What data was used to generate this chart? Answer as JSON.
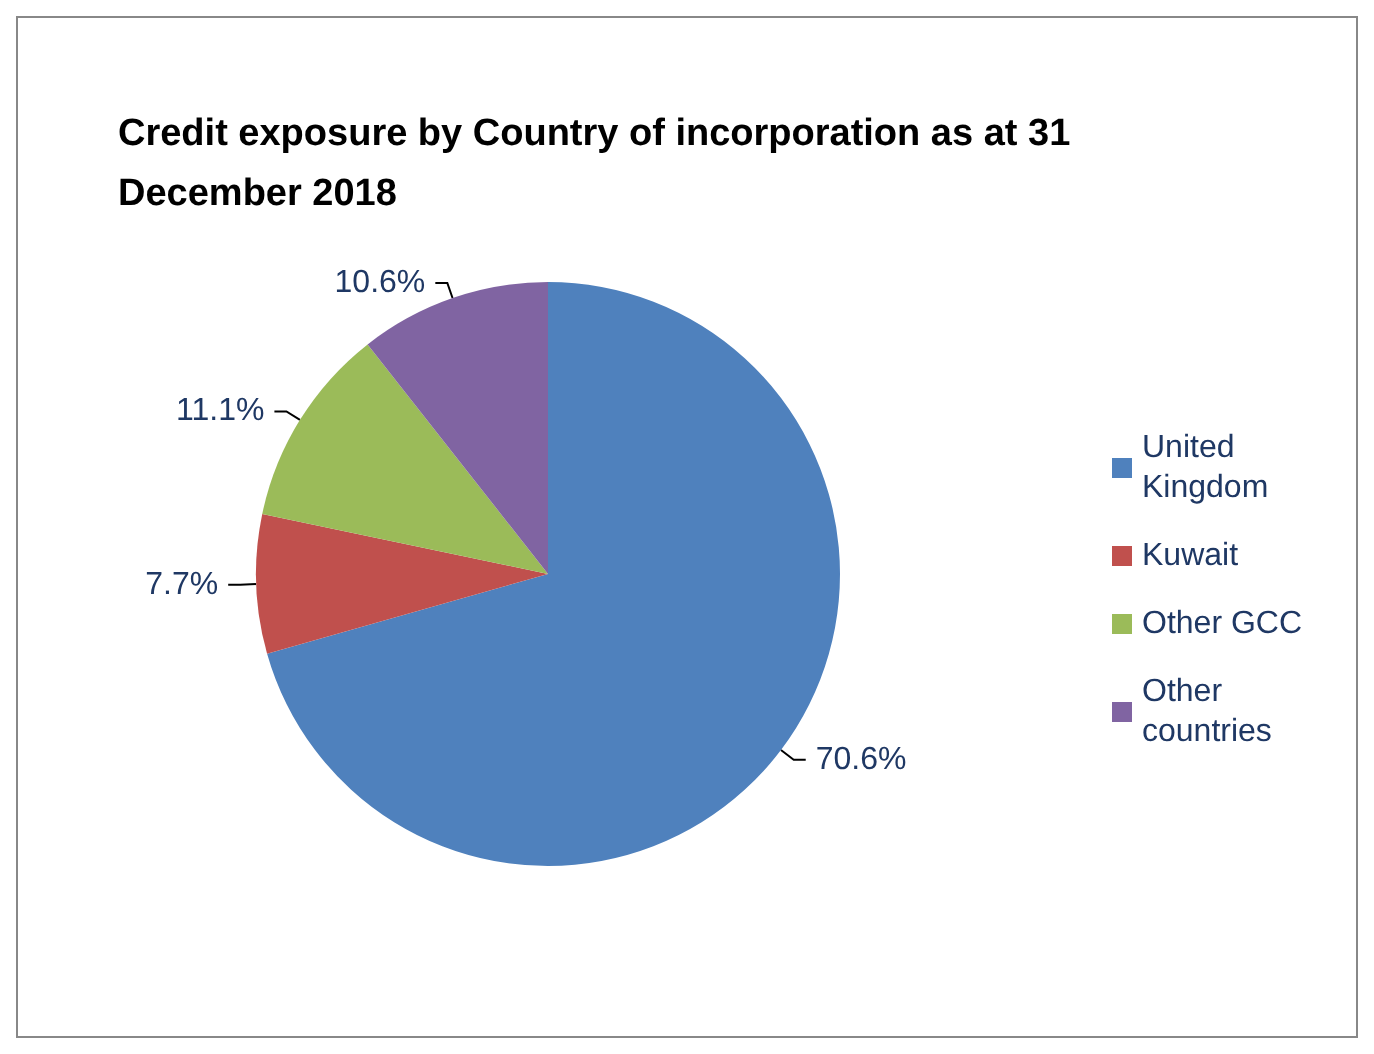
{
  "chart_data": {
    "type": "pie",
    "title": "Credit exposure by Country of incorporation as at 31 December 2018",
    "categories": [
      "United Kingdom",
      "Kuwait",
      "Other GCC",
      "Other countries"
    ],
    "values": [
      70.6,
      7.7,
      11.1,
      10.6
    ],
    "colors": [
      "#4f81bd",
      "#c0504d",
      "#9bbb59",
      "#8064a2"
    ],
    "value_labels": [
      "70.6%",
      "7.7%",
      "11.1%",
      "10.6%"
    ],
    "legend": "right"
  }
}
